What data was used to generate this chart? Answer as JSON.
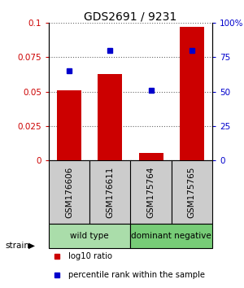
{
  "title": "GDS2691 / 9231",
  "samples": [
    "GSM176606",
    "GSM176611",
    "GSM175764",
    "GSM175765"
  ],
  "bar_values": [
    0.051,
    0.063,
    0.005,
    0.097
  ],
  "blue_values_pct": [
    65,
    80,
    51,
    80
  ],
  "bar_color": "#cc0000",
  "blue_color": "#0000cc",
  "ylim_left": [
    0,
    0.1
  ],
  "ylim_right": [
    0,
    100
  ],
  "yticks_left": [
    0,
    0.025,
    0.05,
    0.075,
    0.1
  ],
  "yticks_right": [
    0,
    25,
    50,
    75,
    100
  ],
  "ytick_labels_left": [
    "0",
    "0.025",
    "0.05",
    "0.075",
    "0.1"
  ],
  "ytick_labels_right": [
    "0",
    "25",
    "50",
    "75",
    "100%"
  ],
  "groups": [
    {
      "label": "wild type",
      "indices": [
        0,
        1
      ],
      "color": "#aaddaa"
    },
    {
      "label": "dominant negative",
      "indices": [
        2,
        3
      ],
      "color": "#77cc77"
    }
  ],
  "legend_items": [
    {
      "label": "log10 ratio",
      "color": "#cc0000"
    },
    {
      "label": "percentile rank within the sample",
      "color": "#0000cc"
    }
  ],
  "sample_box_color": "#cccccc",
  "background_color": "#ffffff"
}
